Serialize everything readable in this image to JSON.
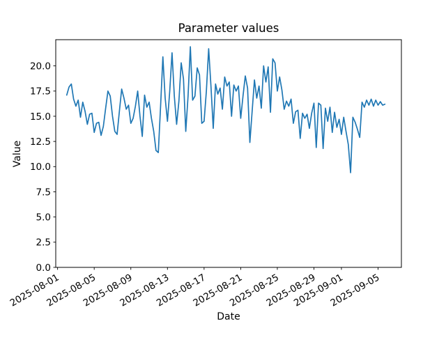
{
  "chart_data": {
    "type": "line",
    "title": "Parameter values",
    "xlabel": "Date",
    "ylabel": "Value",
    "grid": false,
    "legend": "none",
    "line_color": "#1f77b4",
    "axes_color": "#000000",
    "background_color": "#ffffff",
    "x_tick_rotation_deg": 30,
    "xlim_days_after_2025_08_01": [
      -0.2,
      37.55
    ],
    "ylim": [
      0,
      22.6
    ],
    "x_start_days_after_2025_08_01": 1.0,
    "x_step_days": 0.25,
    "x_first_sample": "2025-08-02 00:00",
    "x_last_sample": "2025-09-05 18:00",
    "values": [
      17.1,
      17.9,
      18.2,
      16.7,
      16.0,
      16.6,
      14.9,
      16.4,
      15.5,
      14.2,
      15.2,
      15.3,
      13.4,
      14.3,
      14.4,
      13.1,
      14.0,
      15.8,
      17.5,
      17.0,
      15.0,
      13.5,
      13.2,
      15.5,
      17.7,
      16.8,
      15.7,
      16.1,
      14.3,
      14.8,
      16.0,
      17.5,
      15.0,
      13.0,
      17.1,
      15.9,
      16.4,
      14.8,
      13.5,
      11.6,
      11.4,
      16.0,
      20.9,
      16.8,
      14.5,
      17.5,
      21.3,
      17.0,
      14.2,
      16.5,
      20.3,
      18.7,
      13.5,
      17.0,
      21.9,
      16.6,
      17.0,
      19.8,
      19.1,
      14.3,
      14.5,
      17.5,
      21.7,
      18.0,
      13.8,
      18.2,
      17.2,
      17.8,
      15.7,
      18.9,
      18.0,
      18.4,
      15.0,
      18.1,
      17.5,
      18.0,
      14.8,
      17.0,
      19.0,
      17.8,
      12.4,
      15.5,
      18.6,
      16.8,
      18.0,
      15.8,
      20.0,
      18.4,
      19.9,
      15.4,
      20.7,
      20.3,
      17.5,
      18.9,
      17.6,
      15.7,
      16.5,
      16.0,
      16.7,
      14.3,
      15.45,
      15.6,
      12.8,
      15.3,
      14.8,
      15.2,
      13.8,
      15.3,
      16.3,
      11.9,
      16.3,
      16.1,
      11.8,
      15.8,
      14.5,
      15.9,
      13.4,
      15.4,
      13.9,
      14.7,
      13.2,
      14.9,
      13.5,
      12.2,
      9.4,
      14.9,
      14.4,
      13.7,
      12.9,
      16.4,
      15.9,
      16.6,
      16.1,
      16.7,
      16.0,
      16.6,
      16.1,
      16.45,
      16.1,
      16.2
    ],
    "x_ticks": [
      {
        "days": 0,
        "label": "2025-08-01"
      },
      {
        "days": 4,
        "label": "2025-08-05"
      },
      {
        "days": 8,
        "label": "2025-08-09"
      },
      {
        "days": 12,
        "label": "2025-08-13"
      },
      {
        "days": 16,
        "label": "2025-08-17"
      },
      {
        "days": 20,
        "label": "2025-08-21"
      },
      {
        "days": 24,
        "label": "2025-08-25"
      },
      {
        "days": 28,
        "label": "2025-08-29"
      },
      {
        "days": 31,
        "label": "2025-09-01"
      },
      {
        "days": 35,
        "label": "2025-09-05"
      }
    ],
    "y_ticks": [
      {
        "value": 0,
        "label": "0.0"
      },
      {
        "value": 2.5,
        "label": "2.5"
      },
      {
        "value": 5,
        "label": "5.0"
      },
      {
        "value": 7.5,
        "label": "7.5"
      },
      {
        "value": 10,
        "label": "10.0"
      },
      {
        "value": 12.5,
        "label": "12.5"
      },
      {
        "value": 15,
        "label": "15.0"
      },
      {
        "value": 17.5,
        "label": "17.5"
      },
      {
        "value": 20,
        "label": "20.0"
      }
    ]
  }
}
